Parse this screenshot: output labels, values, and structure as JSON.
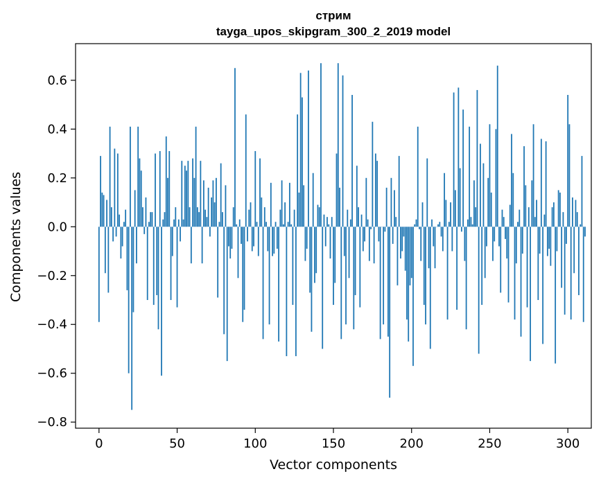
{
  "chart_data": {
    "type": "bar",
    "title": "стрим",
    "subtitle": "tayga_upos_skipgram_300_2_2019 model",
    "xlabel": "Vector components",
    "ylabel": "Components values",
    "xlim": [
      -15,
      315
    ],
    "ylim": [
      -0.825,
      0.75
    ],
    "xticks": [
      0,
      50,
      100,
      150,
      200,
      250,
      300
    ],
    "yticks": [
      -0.8,
      -0.6,
      -0.4,
      -0.2,
      0.0,
      0.2,
      0.4,
      0.6
    ],
    "xtick_labels": [
      "0",
      "50",
      "100",
      "150",
      "200",
      "250",
      "300"
    ],
    "ytick_labels": [
      "−0.8",
      "−0.6",
      "−0.4",
      "−0.2",
      "0.0",
      "0.2",
      "0.4",
      "0.6"
    ],
    "bar_color": "#1f77b4",
    "grid": false,
    "series": [
      {
        "values": [
          -0.39,
          0.29,
          0.14,
          0.13,
          -0.19,
          0.11,
          -0.27,
          0.41,
          0.08,
          -0.06,
          0.32,
          -0.04,
          0.3,
          0.05,
          -0.13,
          -0.08,
          0.02,
          0.07,
          -0.26,
          -0.6,
          0.41,
          -0.75,
          -0.35,
          0.15,
          -0.15,
          0.41,
          0.28,
          0.23,
          0.08,
          -0.03,
          0.12,
          -0.3,
          0.02,
          0.06,
          0.06,
          -0.32,
          0.3,
          -0.28,
          -0.42,
          0.31,
          -0.61,
          0.03,
          0.06,
          0.37,
          0.2,
          0.31,
          -0.3,
          -0.12,
          0.03,
          0.08,
          -0.33,
          0.03,
          -0.06,
          0.27,
          0.03,
          0.25,
          0.23,
          0.27,
          0.08,
          -0.15,
          0.28,
          0.2,
          0.41,
          0.08,
          0.06,
          0.27,
          -0.15,
          0.19,
          0.07,
          0.04,
          0.16,
          -0.04,
          0.12,
          0.19,
          0.1,
          0.2,
          -0.29,
          0.02,
          0.26,
          0.06,
          -0.44,
          0.17,
          -0.55,
          -0.08,
          -0.13,
          -0.09,
          0.08,
          0.65,
          0.01,
          -0.21,
          0.03,
          -0.07,
          -0.39,
          -0.34,
          0.46,
          -0.06,
          0.07,
          0.1,
          -0.1,
          -0.08,
          0.31,
          0.02,
          -0.12,
          0.28,
          0.12,
          -0.46,
          0.08,
          0.02,
          -0.1,
          -0.4,
          0.18,
          -0.12,
          -0.11,
          0.02,
          -0.09,
          -0.47,
          0.07,
          0.19,
          0.01,
          0.1,
          -0.53,
          0.02,
          0.18,
          0.01,
          -0.32,
          0.07,
          -0.53,
          0.46,
          0.14,
          0.63,
          0.53,
          0.17,
          -0.14,
          -0.09,
          0.64,
          -0.27,
          -0.43,
          0.22,
          -0.23,
          -0.19,
          0.09,
          0.08,
          0.67,
          -0.5,
          0.05,
          -0.08,
          0.04,
          0.01,
          -0.13,
          0.04,
          -0.32,
          -0.23,
          0.3,
          0.67,
          0.16,
          -0.46,
          0.62,
          -0.12,
          -0.4,
          0.07,
          -0.21,
          0.03,
          0.54,
          -0.42,
          -0.28,
          0.25,
          0.08,
          -0.33,
          0.05,
          -0.1,
          -0.06,
          0.2,
          0.03,
          -0.14,
          -0.01,
          0.43,
          -0.15,
          0.3,
          0.27,
          -0.06,
          -0.46,
          0.0,
          -0.4,
          -0.02,
          0.16,
          -0.45,
          -0.7,
          0.2,
          -0.07,
          0.15,
          0.04,
          -0.24,
          0.29,
          -0.13,
          -0.1,
          -0.04,
          -0.18,
          -0.38,
          -0.47,
          -0.24,
          -0.21,
          -0.57,
          0.01,
          0.03,
          0.41,
          -0.01,
          -0.14,
          0.1,
          -0.32,
          -0.4,
          0.28,
          -0.17,
          -0.5,
          0.03,
          -0.08,
          -0.17,
          0.0,
          0.01,
          0.02,
          -0.04,
          -0.1,
          0.22,
          0.11,
          -0.38,
          0.02,
          0.1,
          -0.1,
          0.55,
          0.15,
          -0.34,
          0.57,
          0.24,
          -0.02,
          0.48,
          -0.14,
          -0.42,
          0.03,
          0.41,
          0.04,
          0.01,
          0.19,
          0.08,
          0.56,
          -0.52,
          0.34,
          -0.32,
          0.26,
          -0.21,
          -0.08,
          0.2,
          0.42,
          0.14,
          -0.14,
          -0.06,
          0.4,
          0.66,
          -0.08,
          -0.27,
          0.07,
          0.04,
          -0.05,
          -0.13,
          -0.31,
          0.09,
          0.38,
          0.22,
          -0.38,
          -0.15,
          0.02,
          0.07,
          -0.45,
          -0.11,
          0.33,
          0.17,
          -0.33,
          0.08,
          -0.55,
          0.19,
          0.42,
          0.04,
          0.11,
          -0.3,
          -0.11,
          0.36,
          -0.48,
          0.05,
          0.35,
          -0.12,
          -0.09,
          -0.16,
          0.08,
          0.1,
          -0.56,
          -0.1,
          0.15,
          0.14,
          -0.25,
          0.06,
          -0.36,
          -0.07,
          0.54,
          0.42,
          -0.38,
          0.12,
          -0.19,
          0.11,
          0.06,
          -0.28,
          0.01,
          0.29,
          -0.39,
          -0.04
        ]
      }
    ]
  }
}
